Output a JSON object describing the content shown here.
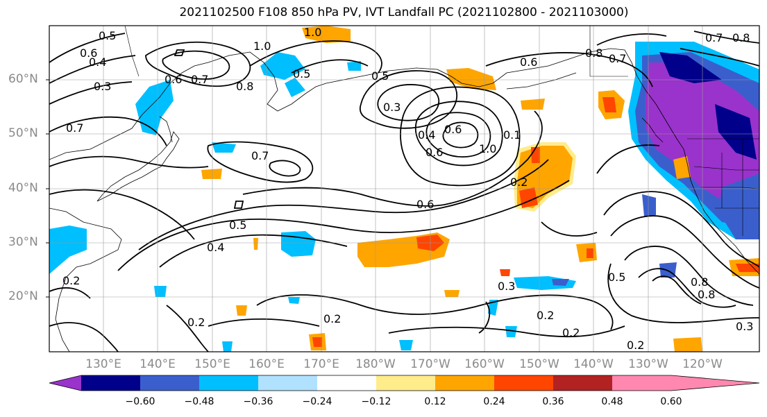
{
  "title": "2021102500 F108 850 hPa PV, IVT Landfall PC (2021102800 - 2021103000)",
  "lat_labels": [
    "60°N",
    "50°N",
    "40°N",
    "30°N",
    "20°N"
  ],
  "lon_labels": [
    "130°E",
    "140°E",
    "150°E",
    "160°E",
    "170°E",
    "180°W",
    "170°W",
    "160°W",
    "150°W",
    "140°W",
    "130°W",
    "120°W"
  ],
  "colorbar": {
    "colors": [
      "#9933cc",
      "#00008b",
      "#3a5fcd",
      "#00bfff",
      "#b0e2ff",
      "#ffffff",
      "#ffec8b",
      "#ffa500",
      "#ff4500",
      "#b22222",
      "#ff88b0"
    ],
    "tick_labels": [
      "−0.60",
      "−0.48",
      "−0.36",
      "−0.24",
      "−0.12",
      "0.12",
      "0.24",
      "0.36",
      "0.48",
      "0.60"
    ]
  },
  "contour_labels": [
    "0.5",
    "0.6",
    "0.4",
    "0.3",
    "1.0",
    "0.6",
    "0.7",
    "0.8",
    "0.5",
    "0.5",
    "0.3",
    "0.6",
    "0.4",
    "0.6",
    "0.1",
    "1.0",
    "0.8",
    "0.7",
    "0.2",
    "0.6",
    "0.7",
    "0.6",
    "0.7",
    "0.5",
    "0.4",
    "0.2",
    "0.2",
    "0.2",
    "0.3",
    "0.2",
    "0.2",
    "0.2",
    "0.5",
    "0.8",
    "0.8",
    "0.7",
    "0.8",
    "0.3",
    "1.0"
  ]
}
